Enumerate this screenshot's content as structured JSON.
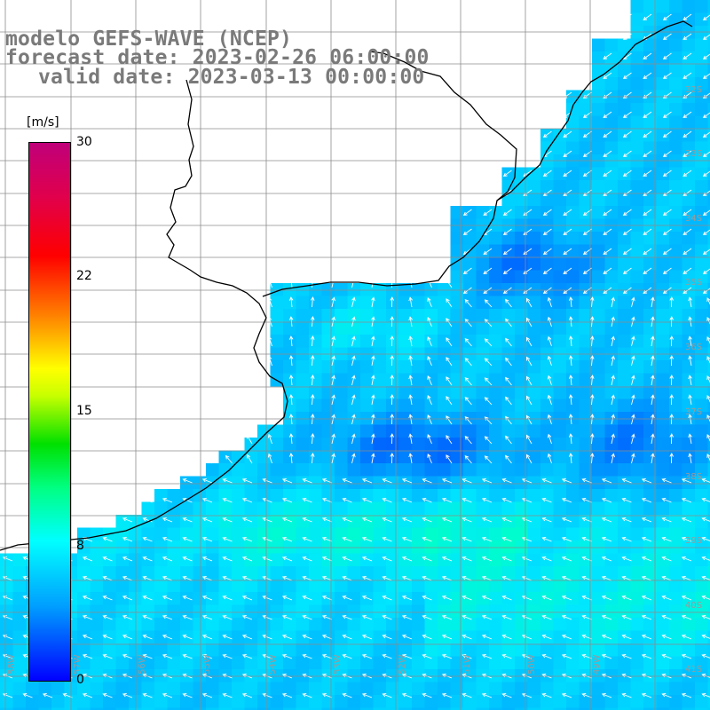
{
  "header": {
    "line1": "modelo GEFS-WAVE (NCEP)",
    "line2": "forecast date: 2023-02-26 06:00:00",
    "line3": "valid date: 2023-03-13 00:00:00"
  },
  "colorbar": {
    "unit": "[m/s]",
    "ticks": [
      "30",
      "22",
      "15",
      "8",
      "0"
    ],
    "tick_values": [
      30,
      22,
      15,
      8,
      0
    ],
    "min": 0,
    "max": 30
  },
  "map": {
    "lat_labels": [
      "32S",
      "33S",
      "34S",
      "35S",
      "36S",
      "37S",
      "38S",
      "39S",
      "40S",
      "41S"
    ],
    "lon_labels": [
      "58W",
      "57W",
      "56W",
      "55W",
      "54W",
      "53W",
      "52W",
      "51W",
      "50W",
      "49W"
    ],
    "colors": {
      "calm": "#0033ff",
      "low": "#00a8ff",
      "mid": "#00ffff",
      "high": "#00ff90",
      "land": "#ffffff",
      "grid": "#8c8c8c",
      "coast": "#000000",
      "arrows": "#ffffff"
    }
  }
}
